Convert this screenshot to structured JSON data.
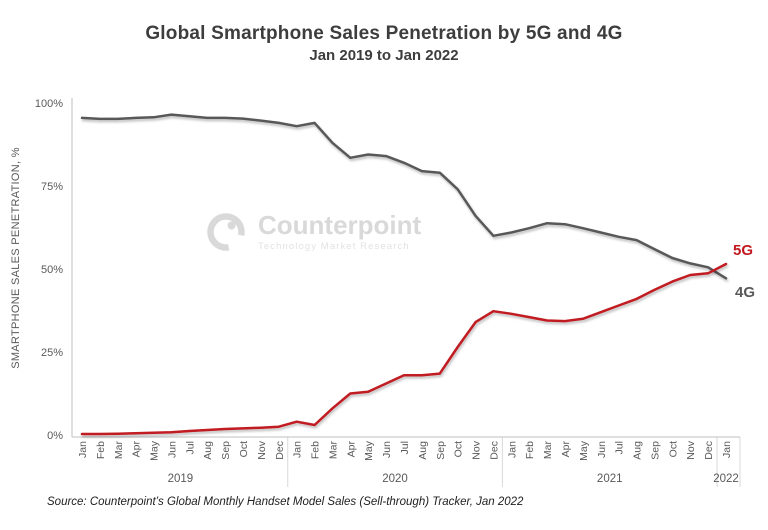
{
  "page": {
    "title": "Global Smartphone Sales Penetration by 5G and 4G",
    "subtitle": "Jan 2019 to Jan 2022",
    "source": "Source: Counterpoint’s Global Monthly Handset Model Sales (Sell-through) Tracker, Jan 2022"
  },
  "watermark": {
    "brand": "Counterpoint",
    "tagline": "Technology Market Research"
  },
  "chart_data": {
    "type": "line",
    "title": "Global Smartphone Sales Penetration by 5G and 4G",
    "subtitle": "Jan 2019 to Jan 2022",
    "ylabel": "SMARTPHONE SALES PENETRATION, %",
    "ylim": [
      0,
      100
    ],
    "grid": false,
    "legend_position": "line-end-labels",
    "yticks": [
      0,
      25,
      50,
      75,
      100
    ],
    "ytick_labels": [
      "0%",
      "25%",
      "50%",
      "75%",
      "100%"
    ],
    "x": [
      "Jan",
      "Feb",
      "Mar",
      "Apr",
      "May",
      "Jun",
      "Jul",
      "Aug",
      "Sep",
      "Oct",
      "Nov",
      "Dec",
      "Jan",
      "Feb",
      "Mar",
      "Apr",
      "May",
      "Jun",
      "Jul",
      "Aug",
      "Sep",
      "Oct",
      "Nov",
      "Dec",
      "Jan",
      "Feb",
      "Mar",
      "Apr",
      "May",
      "Jun",
      "Jul",
      "Aug",
      "Sep",
      "Oct",
      "Nov",
      "Dec",
      "Jan"
    ],
    "year_groups": [
      {
        "label": "2019",
        "from": 0,
        "to": 11
      },
      {
        "label": "2020",
        "from": 12,
        "to": 23
      },
      {
        "label": "2021",
        "from": 24,
        "to": 35
      },
      {
        "label": "2022",
        "from": 36,
        "to": 36
      }
    ],
    "series": [
      {
        "name": "4G",
        "color": "#595959",
        "values": [
          95.5,
          95.2,
          95.2,
          95.5,
          95.7,
          96.5,
          96.0,
          95.5,
          95.5,
          95.3,
          94.7,
          94.0,
          93.0,
          94.0,
          88.0,
          83.5,
          84.5,
          84.0,
          82.0,
          79.5,
          79.0,
          74.0,
          66.0,
          60.0,
          61.0,
          62.3,
          63.8,
          63.5,
          62.3,
          61.0,
          59.7,
          58.7,
          56.0,
          53.3,
          51.7,
          50.5,
          47.2
        ]
      },
      {
        "name": "5G",
        "color": "#C01A20",
        "values": [
          0.3,
          0.3,
          0.4,
          0.5,
          0.7,
          0.8,
          1.2,
          1.5,
          1.8,
          2.0,
          2.2,
          2.5,
          4.0,
          3.0,
          8.0,
          12.5,
          13.0,
          15.5,
          18.0,
          18.0,
          18.5,
          26.5,
          34.0,
          37.3,
          36.5,
          35.5,
          34.5,
          34.3,
          35.0,
          37.0,
          39.0,
          41.0,
          43.7,
          46.2,
          48.2,
          48.7,
          51.5
        ]
      }
    ],
    "axis_color": "#BFBFBF",
    "separator_color": "#D9D9D9",
    "tick_text_color": "#595959"
  }
}
